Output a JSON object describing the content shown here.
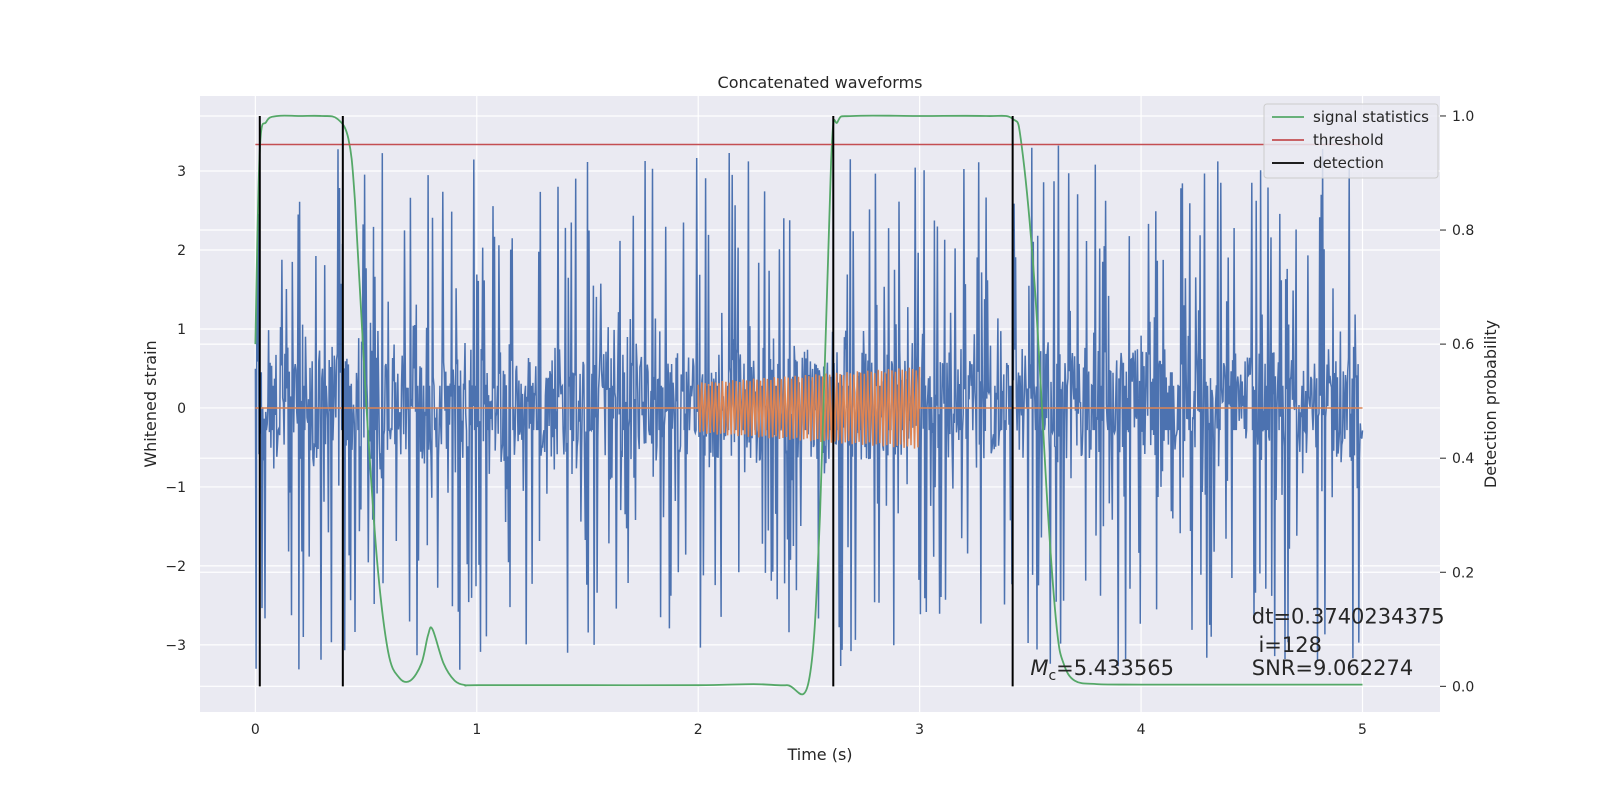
{
  "chart_data": {
    "type": "line",
    "title": "Concatenated waveforms",
    "xlabel": "Time (s)",
    "ylabel_left": "Whitened strain",
    "ylabel_right": "Detection probability",
    "xlim": [
      -0.25,
      5.35
    ],
    "ylim_left": [
      -3.85,
      3.95
    ],
    "ylim_right": [
      -0.045,
      1.035
    ],
    "grid": true,
    "legend_position": "top-right",
    "x_ticks": [
      0,
      1,
      2,
      3,
      4,
      5
    ],
    "x_tick_labels": [
      "0",
      "1",
      "2",
      "3",
      "4",
      "5"
    ],
    "y_left_ticks": [
      3,
      2,
      1,
      0,
      -1,
      -2,
      -3
    ],
    "y_left_tick_labels": [
      "3",
      "2",
      "1",
      "0",
      "−1",
      "−2",
      "−3"
    ],
    "y_right_ticks": [
      1.0,
      0.8,
      0.6,
      0.4,
      0.2,
      0.0
    ],
    "y_right_tick_labels": [
      "1.0",
      "0.8",
      "0.6",
      "0.4",
      "0.2",
      "0.0"
    ],
    "legend": [
      {
        "label": "signal statistics",
        "color": "#55a868"
      },
      {
        "label": "threshold",
        "color": "#c44e52"
      },
      {
        "label": "detection",
        "color": "#000000"
      }
    ],
    "series": [
      {
        "role": "noise strain",
        "axis": "left",
        "color": "#4c72b0",
        "x_range": [
          0,
          5
        ],
        "noise_band": [
          -0.65,
          0.75
        ],
        "peak_extent": [
          -3.5,
          3.5
        ]
      },
      {
        "role": "injected waveform",
        "axis": "left",
        "color": "#dd8452",
        "flat_x_range": [
          0,
          5
        ],
        "chirp": {
          "x_start": 2.0,
          "x_end": 3.0,
          "amp_start": 0.32,
          "amp_end": 0.52
        }
      },
      {
        "name": "signal statistics",
        "axis": "right",
        "color": "#55a868",
        "x": [
          0,
          0.02,
          0.05,
          0.1,
          0.2,
          0.3,
          0.37,
          0.42,
          0.45,
          0.5,
          0.55,
          0.6,
          0.65,
          0.7,
          0.75,
          0.78,
          0.8,
          0.85,
          0.9,
          0.95,
          1.0,
          1.5,
          2.0,
          2.25,
          2.4,
          2.5,
          2.55,
          2.6,
          2.63,
          2.7,
          3.0,
          3.3,
          3.42,
          3.46,
          3.52,
          3.58,
          3.62,
          3.65,
          3.7,
          3.8,
          4.0,
          4.5,
          5.0
        ],
        "y": [
          0.6,
          0.94,
          0.99,
          1.0,
          1.0,
          1.0,
          0.995,
          0.96,
          0.85,
          0.5,
          0.22,
          0.06,
          0.015,
          0.01,
          0.04,
          0.09,
          0.1,
          0.04,
          0.01,
          0.002,
          0.002,
          0.002,
          0.002,
          0.004,
          0.002,
          0.01,
          0.3,
          0.92,
          0.99,
          1.0,
          1.0,
          1.0,
          0.995,
          0.95,
          0.7,
          0.3,
          0.1,
          0.04,
          0.01,
          0.004,
          0.003,
          0.003,
          0.003
        ]
      },
      {
        "name": "threshold",
        "axis": "right",
        "color": "#c44e52",
        "x": [
          0,
          5
        ],
        "y": [
          0.95,
          0.95
        ]
      }
    ],
    "detections": [
      0.02,
      0.395,
      2.61,
      3.42
    ],
    "detection_range": [
      0.0,
      1.0
    ],
    "annotations": [
      {
        "id": "mc",
        "text_main": "M",
        "text_sub": "c",
        "text_rest": "=5.433565",
        "x": 3.5,
        "y_right": 0.02
      },
      {
        "id": "dt",
        "text": "dt=0.3740234375",
        "x": 4.5,
        "y_right": 0.11
      },
      {
        "id": "i",
        "text": " i=128",
        "x": 4.5,
        "y_right": 0.06
      },
      {
        "id": "snr",
        "text": "SNR=9.062274",
        "x": 4.5,
        "y_right": 0.02
      }
    ]
  }
}
